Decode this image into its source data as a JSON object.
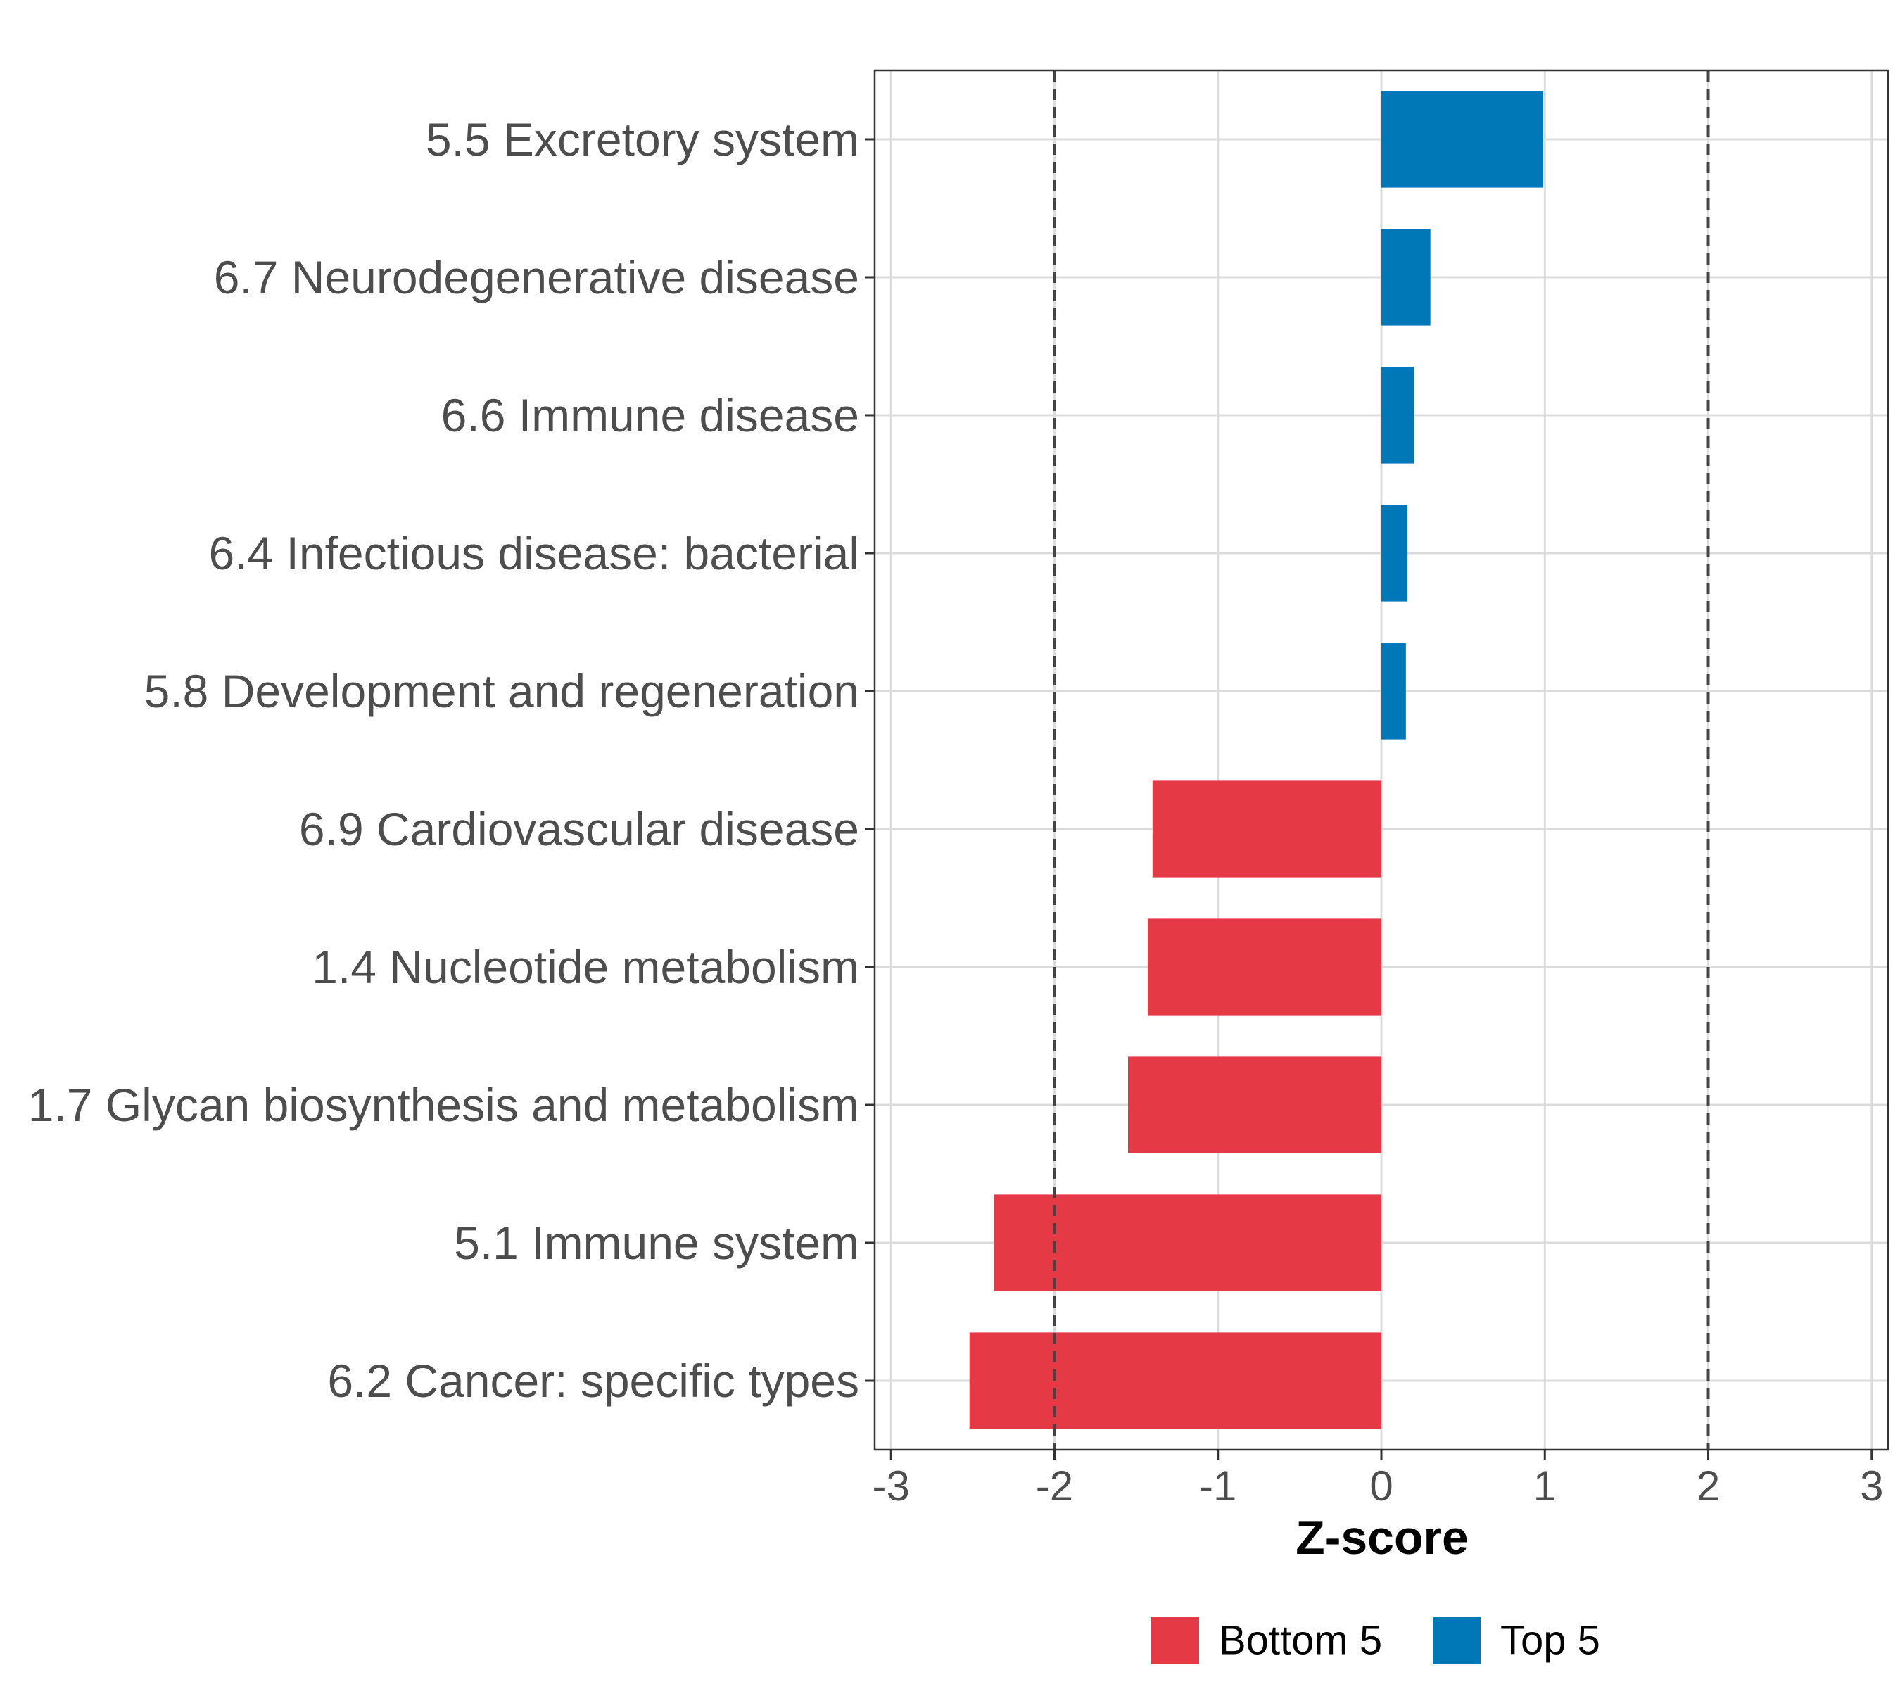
{
  "chart_data": {
    "type": "bar",
    "orientation": "horizontal",
    "title": "",
    "xlabel": "Z-score",
    "ylabel": "",
    "xlim": [
      -3.1,
      3.1
    ],
    "xticks": [
      -3,
      -2,
      -1,
      0,
      1,
      2,
      3
    ],
    "xtick_labels": [
      "-3",
      "-2",
      "-1",
      "0",
      "1",
      "2",
      "3"
    ],
    "reference_lines": [
      -2,
      2
    ],
    "grid": true,
    "categories": [
      "5.5 Excretory system",
      "6.7 Neurodegenerative disease",
      "6.6 Immune disease",
      "6.4 Infectious disease: bacterial",
      "5.8 Development and regeneration",
      "6.9 Cardiovascular disease",
      "1.4 Nucleotide metabolism",
      "1.7 Glycan biosynthesis and metabolism",
      "5.1 Immune system",
      "6.2 Cancer: specific types"
    ],
    "values": [
      0.99,
      0.3,
      0.2,
      0.16,
      0.15,
      -1.4,
      -1.43,
      -1.55,
      -2.37,
      -2.52
    ],
    "groups": [
      "Top 5",
      "Top 5",
      "Top 5",
      "Top 5",
      "Top 5",
      "Bottom 5",
      "Bottom 5",
      "Bottom 5",
      "Bottom 5",
      "Bottom 5"
    ],
    "legend": {
      "position": "bottom",
      "entries": [
        {
          "label": "Bottom 5",
          "color": "#e63946"
        },
        {
          "label": "Top 5",
          "color": "#0077b6"
        }
      ]
    },
    "colors": {
      "Bottom 5": "#e63946",
      "Top 5": "#0077b6",
      "grid": "#dcdcdc",
      "reference_line": "#444444",
      "panel_border": "#333333"
    }
  }
}
